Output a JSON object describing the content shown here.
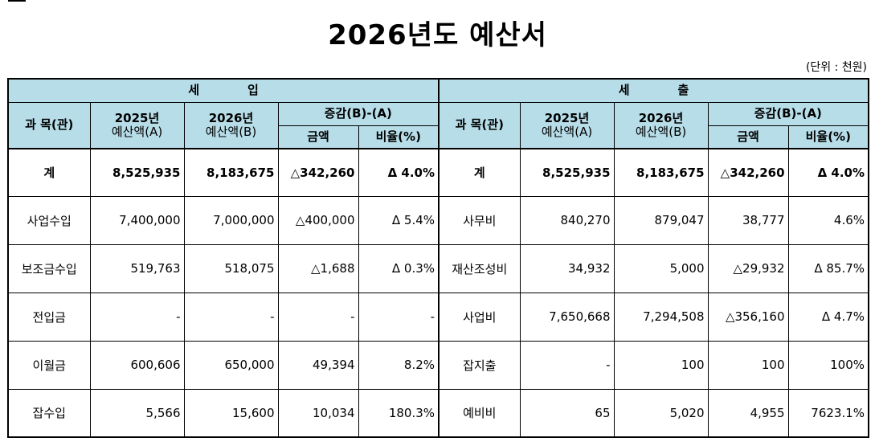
{
  "title": "2026년도 예산서",
  "unit_label": "(단위 : 천원)",
  "revenue": {
    "section_a": "세",
    "section_b": "입",
    "headers": {
      "item": "과 목(관)",
      "prev_year": "2025년",
      "prev_amount": "예산액(A)",
      "curr_year": "2026년",
      "curr_amount": "예산액(B)",
      "change": "증감(B)-(A)",
      "amount": "금액",
      "ratio": "비율(%)"
    },
    "rows": [
      {
        "item": "계",
        "a": "8,525,935",
        "b": "8,183,675",
        "diff": "△342,260",
        "ratio": "Δ 4.0%"
      },
      {
        "item": "사업수입",
        "a": "7,400,000",
        "b": "7,000,000",
        "diff": "△400,000",
        "ratio": "Δ 5.4%"
      },
      {
        "item": "보조금수입",
        "a": "519,763",
        "b": "518,075",
        "diff": "△1,688",
        "ratio": "Δ 0.3%"
      },
      {
        "item": "전입금",
        "a": "-",
        "b": "-",
        "diff": "-",
        "ratio": "-"
      },
      {
        "item": "이월금",
        "a": "600,606",
        "b": "650,000",
        "diff": "49,394",
        "ratio": "8.2%"
      },
      {
        "item": "잡수입",
        "a": "5,566",
        "b": "15,600",
        "diff": "10,034",
        "ratio": "180.3%"
      }
    ]
  },
  "expenditure": {
    "section_a": "세",
    "section_b": "출",
    "headers": {
      "item": "과 목(관)",
      "prev_year": "2025년",
      "prev_amount": "예산액(A)",
      "curr_year": "2026년",
      "curr_amount": "예산액(B)",
      "change": "증감(B)-(A)",
      "amount": "금액",
      "ratio": "비율(%)"
    },
    "rows": [
      {
        "item": "계",
        "a": "8,525,935",
        "b": "8,183,675",
        "diff": "△342,260",
        "ratio": "Δ 4.0%"
      },
      {
        "item": "사무비",
        "a": "840,270",
        "b": "879,047",
        "diff": "38,777",
        "ratio": "4.6%"
      },
      {
        "item": "재산조성비",
        "a": "34,932",
        "b": "5,000",
        "diff": "△29,932",
        "ratio": "Δ 85.7%"
      },
      {
        "item": "사업비",
        "a": "7,650,668",
        "b": "7,294,508",
        "diff": "△356,160",
        "ratio": "Δ 4.7%"
      },
      {
        "item": "잡지출",
        "a": "-",
        "b": "100",
        "diff": "100",
        "ratio": "100%"
      },
      {
        "item": "예비비",
        "a": "65",
        "b": "5,020",
        "diff": "4,955",
        "ratio": "7623.1%"
      }
    ]
  }
}
